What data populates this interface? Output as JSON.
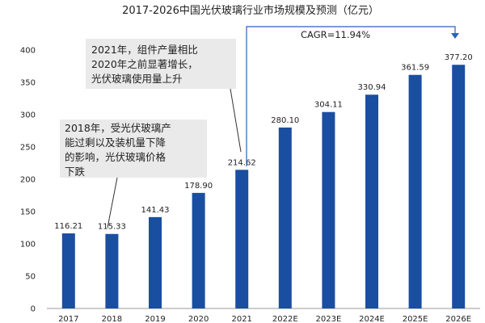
{
  "chart_data": {
    "type": "bar",
    "title": "2017-2026中国光伏玻璃行业市场规模及预测（亿元）",
    "categories": [
      "2017",
      "2018",
      "2019",
      "2020",
      "2021",
      "2022E",
      "2023E",
      "2024E",
      "2025E",
      "2026E"
    ],
    "values": [
      116.21,
      115.33,
      141.43,
      178.9,
      214.62,
      280.1,
      304.11,
      330.94,
      361.59,
      377.2
    ],
    "value_labels": [
      "116.21",
      "115.33",
      "141.43",
      "178.90",
      "214.62",
      "280.10",
      "304.11",
      "330.94",
      "361.59",
      "377.20"
    ],
    "yticks": [
      "0",
      "50",
      "100",
      "150",
      "200",
      "250",
      "300",
      "350",
      "400"
    ],
    "ylim": [
      0,
      400
    ],
    "xlabel": "",
    "ylabel": "",
    "grid": false,
    "bar_color": "#1a4ea0",
    "annotations": {
      "cagr": "CAGR=11.94%",
      "note_2021": [
        "2021年，组件产量相比",
        "2020年之前显著增长，",
        "光伏玻璃使用量上升"
      ],
      "note_2018": [
        "2018年，受光伏玻璃产",
        "能过剩以及装机量下降",
        "的影响，光伏玻璃价格",
        "下跌"
      ]
    }
  }
}
